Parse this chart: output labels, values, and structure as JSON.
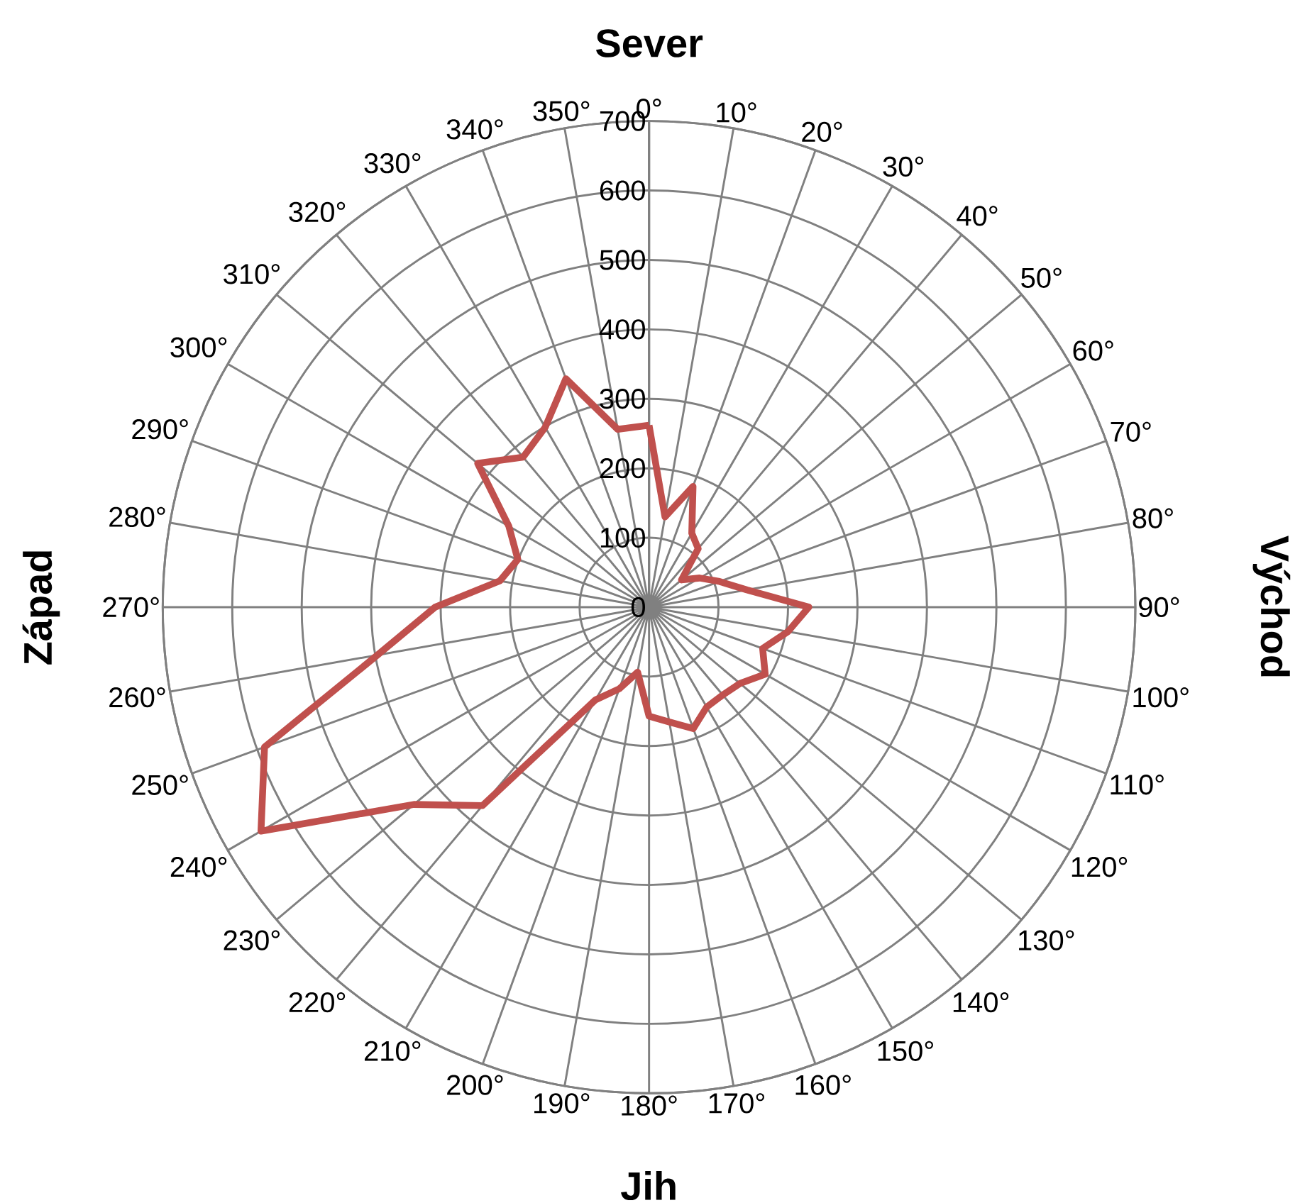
{
  "chart_data": {
    "type": "radar",
    "categories": [
      "0°",
      "10°",
      "20°",
      "30°",
      "40°",
      "50°",
      "60°",
      "70°",
      "80°",
      "90°",
      "100°",
      "110°",
      "120°",
      "130°",
      "140°",
      "150°",
      "160°",
      "170°",
      "180°",
      "190°",
      "200°",
      "210°",
      "220°",
      "230°",
      "240°",
      "250°",
      "260°",
      "270°",
      "280°",
      "290°",
      "300°",
      "310°",
      "320°",
      "330°",
      "340°",
      "350°"
    ],
    "series": [
      {
        "color": "#c0504d",
        "values": [
          262,
          132,
          185,
          123,
          110,
          61,
          84,
          108,
          143,
          230,
          203,
          174,
          193,
          171,
          165,
          166,
          186,
          168,
          157,
          95,
          125,
          154,
          373,
          442,
          645,
          589,
          397,
          308,
          218,
          201,
          233,
          322,
          282,
          299,
          350,
          260
        ]
      }
    ],
    "ylim": [
      0,
      700
    ],
    "yticks": [
      0,
      100,
      200,
      300,
      400,
      500,
      600,
      700
    ],
    "grid": true,
    "annotations": [
      "Sever",
      "Východ",
      "Jih",
      "Západ"
    ]
  }
}
